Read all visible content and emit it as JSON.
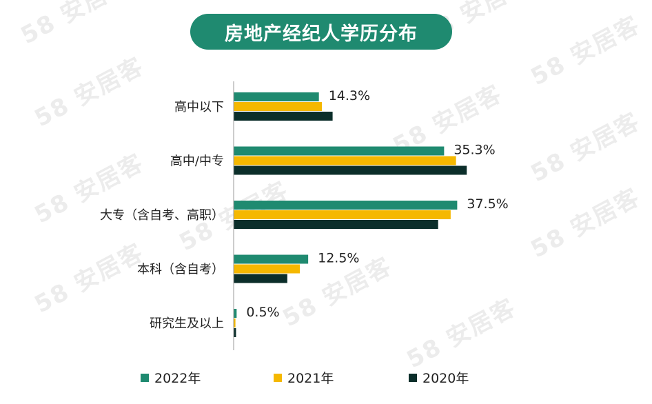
{
  "chart_data": {
    "type": "bar",
    "orientation": "horizontal",
    "title": "房地产经纪人学历分布",
    "categories": [
      "高中以下",
      "高中/中专",
      "大专（含自考、高职）",
      "本科（含自考）",
      "研究生及以上"
    ],
    "series": [
      {
        "name": "2022年",
        "color": "#1f8a70",
        "values": [
          14.3,
          35.3,
          37.5,
          12.5,
          0.5
        ]
      },
      {
        "name": "2021年",
        "color": "#f5b800",
        "values": [
          14.8,
          37.3,
          36.4,
          11.1,
          0.3
        ]
      },
      {
        "name": "2020年",
        "color": "#0b2e2a",
        "values": [
          16.6,
          39.1,
          34.3,
          9.0,
          0.4
        ]
      }
    ],
    "data_labels": [
      "14.3%",
      "35.3%",
      "37.5%",
      "12.5%",
      "0.5%"
    ],
    "xlim": [
      0,
      43
    ],
    "grid": false,
    "legend": "bottom"
  },
  "watermark": "58 安居客"
}
